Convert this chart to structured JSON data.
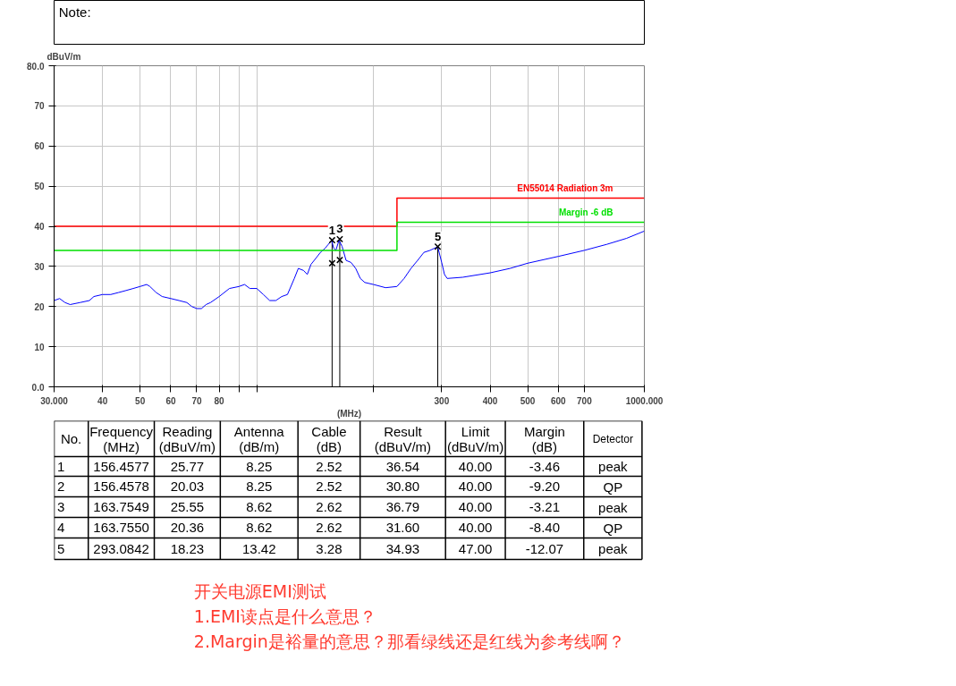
{
  "chart_data": {
    "type": "line",
    "xlabel": "(MHz)",
    "ylabel": "dBuV/m",
    "log": "x",
    "grid": true,
    "xlim": [
      30,
      1000
    ],
    "ylim": [
      0,
      80
    ],
    "xticks": [
      {
        "value": 30,
        "label": "30.000"
      },
      40,
      50,
      60,
      70,
      80,
      {
        "value": 90,
        "label": null
      },
      {
        "value": 100,
        "label": null
      },
      {
        "value": 200,
        "label": null
      },
      300,
      400,
      500,
      600,
      700,
      {
        "value": 1000,
        "label": "1000.000"
      }
    ],
    "yticks": [
      {
        "value": 0,
        "label": "0.0"
      },
      10,
      20,
      30,
      40,
      50,
      60,
      70,
      {
        "value": 80,
        "label": "80.0"
      }
    ],
    "series": [
      {
        "color": "#0000ff",
        "x": [
          30,
          31,
          32,
          33,
          35,
          37,
          38,
          40,
          42,
          44,
          46,
          48,
          50,
          52,
          53,
          55,
          57,
          60,
          63,
          66,
          68,
          70,
          72,
          74,
          76,
          80,
          85,
          90,
          93,
          96,
          100,
          104,
          108,
          112,
          116,
          120,
          125,
          128,
          132,
          135,
          138,
          142,
          146,
          150,
          153,
          156,
          158,
          160,
          163,
          166,
          170,
          175,
          180,
          185,
          190,
          200,
          215,
          230,
          240,
          250,
          260,
          270,
          280,
          293,
          300,
          305,
          310,
          340,
          400,
          450,
          500,
          600,
          700,
          800,
          900,
          1000
        ],
        "values": [
          21.5,
          22,
          21,
          20.5,
          21,
          21.5,
          22.5,
          23,
          23,
          23.5,
          24,
          24.5,
          25,
          25.5,
          25,
          23.5,
          22.5,
          22,
          21.5,
          21,
          20,
          19.5,
          19.5,
          20.5,
          21,
          22.5,
          24.5,
          25,
          25.5,
          24.5,
          24.5,
          23,
          21.5,
          21.5,
          22.5,
          23,
          27,
          29.5,
          29,
          28,
          30.5,
          32,
          33.5,
          34.5,
          35.5,
          36.5,
          34.5,
          34,
          36.5,
          35,
          31.5,
          31,
          29.5,
          27,
          26,
          25.5,
          24.7,
          25,
          27,
          29.5,
          31.5,
          33.5,
          34,
          34.9,
          31,
          28,
          27,
          27.3,
          28.4,
          29.5,
          30.8,
          32.5,
          34,
          35.5,
          37,
          38.8
        ]
      },
      {
        "name": "EN55014 Radiation 3m",
        "color": "#ff0000",
        "x": [
          30,
          230,
          230,
          1000
        ],
        "values": [
          40,
          40,
          47,
          47
        ]
      },
      {
        "name": "Margin -6 dB",
        "color": "#00e000",
        "x": [
          30,
          230,
          230,
          1000
        ],
        "values": [
          34,
          34,
          41,
          41
        ]
      },
      {
        "type": "scatter",
        "marker": "cross",
        "color": "#000000",
        "x": [
          156.4577,
          156.4578,
          163.7549,
          163.755,
          293.0842
        ],
        "values": [
          36.54,
          30.8,
          36.79,
          31.6,
          34.93
        ]
      }
    ],
    "ref_lines": [
      {
        "axis": "x",
        "value": 156.4577,
        "color": "#000000"
      },
      {
        "axis": "x",
        "value": 163.7549,
        "color": "#000000"
      },
      {
        "axis": "x",
        "value": 293.0842,
        "color": "#000000"
      }
    ],
    "annotations": [
      "Note:",
      "No.",
      "Frequency\n(MHz)",
      "Reading\n(dBuV/m)",
      "Antenna\n(dB/m)",
      "Cable\n(dB)",
      "Result\n(dBuV/m)",
      "Limit\n(dBuV/m)",
      "Margin\n(dB)",
      "Detector",
      "1",
      "156.4577",
      "25.77",
      "8.25",
      "2.52",
      "36.54",
      "40.00",
      "-3.46",
      "peak",
      "2",
      "156.4578",
      "20.03",
      "8.25",
      "2.52",
      "30.80",
      "40.00",
      "-9.20",
      "QP",
      "3",
      "163.7549",
      "25.55",
      "8.62",
      "2.62",
      "36.79",
      "40.00",
      "-3.21",
      "peak",
      "4",
      "163.7550",
      "20.36",
      "8.62",
      "2.62",
      "31.60",
      "40.00",
      "-8.40",
      "QP",
      "5",
      "293.0842",
      "18.23",
      "13.42",
      "3.28",
      "34.93",
      "47.00",
      "-12.07",
      "peak",
      "开关电源EMI测试",
      "1.EMI读点是什么意思？",
      "2.Margin是裕量的意思？那看绿线还是红线为参考线啊？",
      {
        "text": "1",
        "x": 156.4577,
        "y": 36.54
      },
      {
        "text": "3",
        "x": 163.7549,
        "y": 36.79
      },
      {
        "text": "5",
        "x": 293.0842,
        "y": 34.93
      }
    ]
  }
}
